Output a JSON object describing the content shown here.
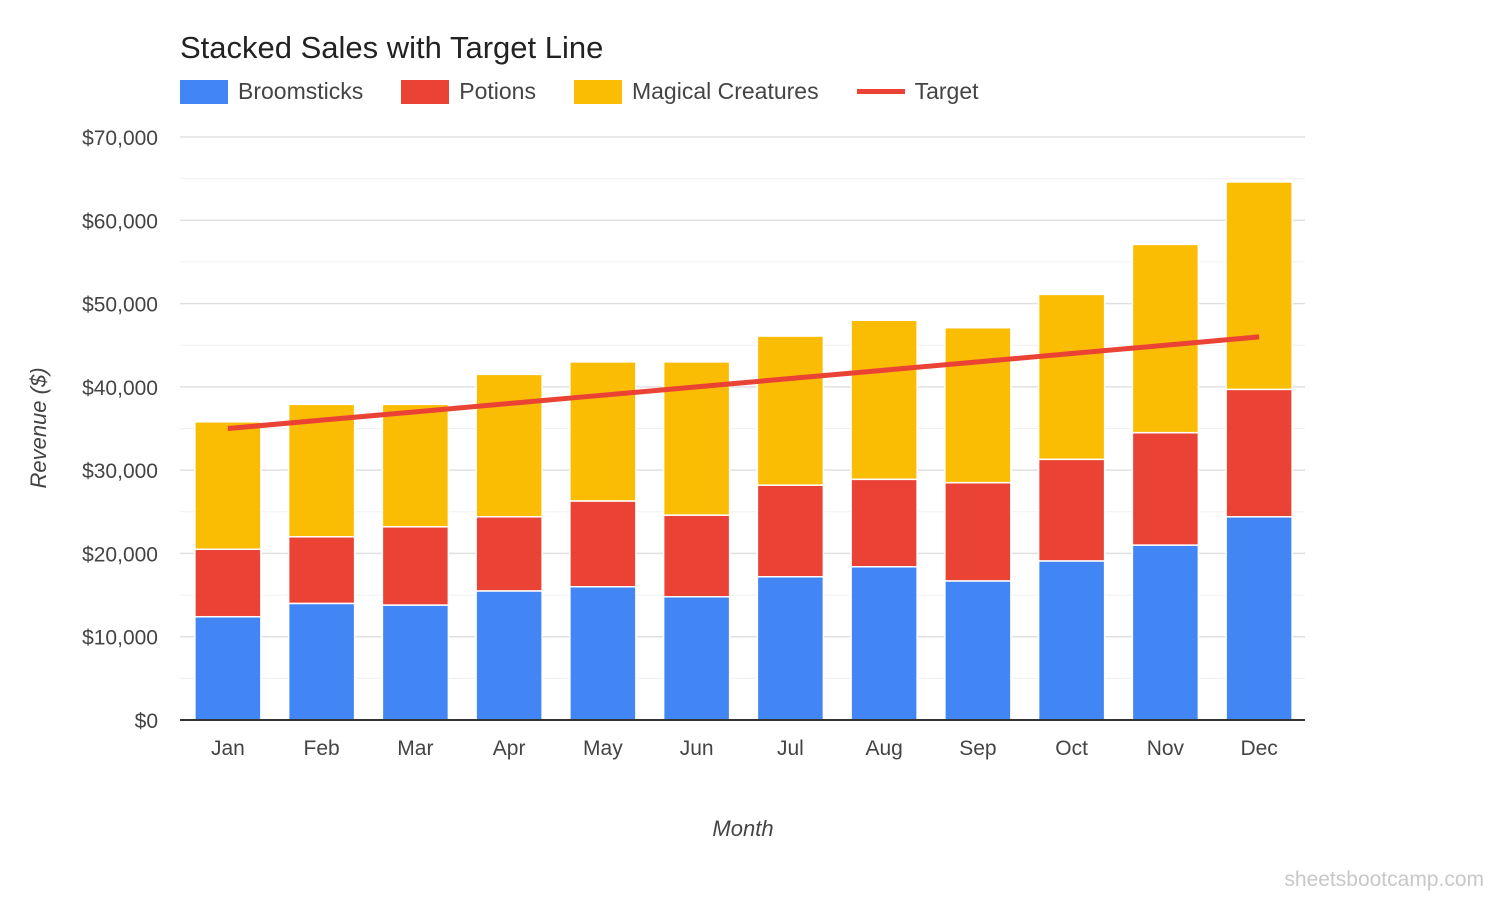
{
  "chart_data": {
    "type": "bar",
    "stacked": true,
    "title": "Stacked Sales with Target Line",
    "xlabel": "Month",
    "ylabel": "Revenue ($)",
    "ylim": [
      0,
      70000
    ],
    "yticks": [
      "$0",
      "$10,000",
      "$20,000",
      "$30,000",
      "$40,000",
      "$50,000",
      "$60,000",
      "$70,000"
    ],
    "grid": true,
    "legend_position": "top",
    "categories": [
      "Jan",
      "Feb",
      "Mar",
      "Apr",
      "May",
      "Jun",
      "Jul",
      "Aug",
      "Sep",
      "Oct",
      "Nov",
      "Dec"
    ],
    "series": [
      {
        "name": "Broomsticks",
        "type": "bar",
        "color": "#4285f4",
        "values": [
          12400,
          14000,
          13800,
          15500,
          16000,
          14800,
          17200,
          18400,
          16700,
          19100,
          21000,
          24400
        ]
      },
      {
        "name": "Potions",
        "type": "bar",
        "color": "#ea4335",
        "values": [
          8100,
          8000,
          9400,
          8900,
          10300,
          9800,
          11000,
          10500,
          11800,
          12200,
          13500,
          15300
        ]
      },
      {
        "name": "Magical Creatures",
        "type": "bar",
        "color": "#fbbc04",
        "values": [
          15300,
          15900,
          14700,
          17100,
          16700,
          18400,
          17900,
          19100,
          18600,
          19800,
          22600,
          24900
        ]
      },
      {
        "name": "Target",
        "type": "line",
        "color": "#ea4335",
        "values": [
          35000,
          36000,
          37000,
          38000,
          39000,
          40000,
          41000,
          42000,
          43000,
          44000,
          45000,
          46000
        ]
      }
    ]
  },
  "watermark": "sheetsbootcamp.com"
}
